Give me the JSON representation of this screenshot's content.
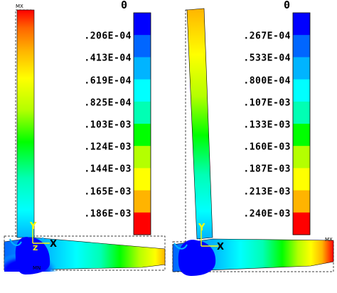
{
  "panels": [
    {
      "id": "left",
      "max_label": "MX",
      "min_label": "MN",
      "axis_y": "Y",
      "axis_x": "X",
      "axis_z": "Z",
      "legend_zero": "0",
      "legend_ticks": [
        ".206E-04",
        ".413E-04",
        ".619E-04",
        ".825E-04",
        ".103E-03",
        ".124E-03",
        ".144E-03",
        ".165E-03",
        ".186E-03"
      ],
      "legend_colors": [
        "#0000ff",
        "#0066ff",
        "#00b4ff",
        "#00ffff",
        "#00ffb4",
        "#00ff00",
        "#b4ff00",
        "#ffff00",
        "#ffb400",
        "#ff0000"
      ]
    },
    {
      "id": "right",
      "max_label": "MX",
      "axis_y": "Y",
      "axis_x": "X",
      "legend_zero": "0",
      "legend_ticks": [
        ".267E-04",
        ".533E-04",
        ".800E-04",
        ".107E-03",
        ".133E-03",
        ".160E-03",
        ".187E-03",
        ".213E-03",
        ".240E-03"
      ],
      "legend_colors": [
        "#0000ff",
        "#0066ff",
        "#00b4ff",
        "#00ffff",
        "#00ffb4",
        "#00ff00",
        "#b4ff00",
        "#ffff00",
        "#ffb400",
        "#ff0000"
      ]
    }
  ]
}
